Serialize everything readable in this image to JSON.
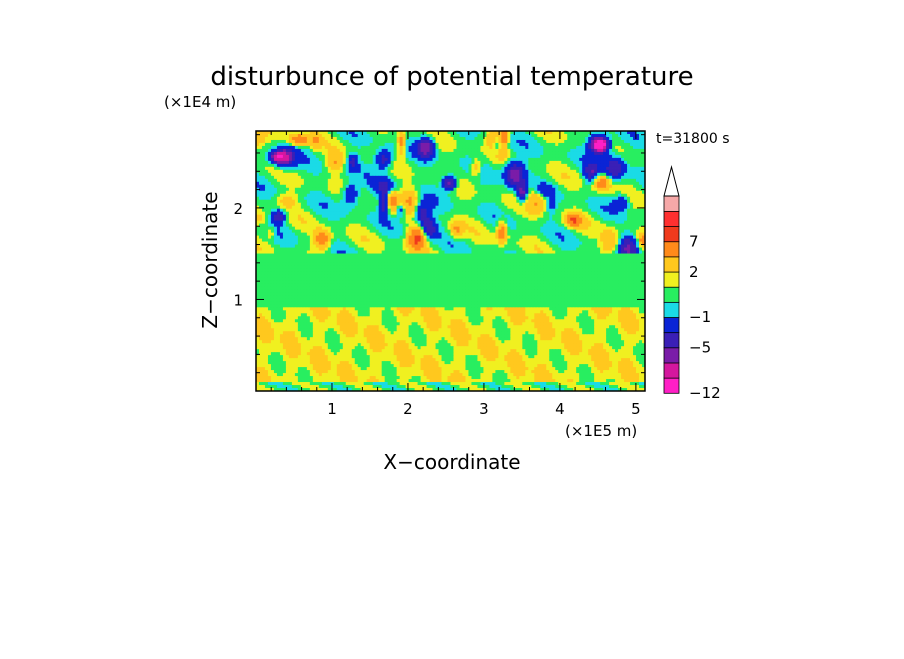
{
  "chart_data": {
    "type": "heatmap",
    "title": "disturbunce of potential temperature",
    "time_label": "t=31800 s",
    "xlabel": "X−coordinate",
    "ylabel": "Z−coordinate",
    "x_multiplier": "(×1E5 m)",
    "y_multiplier": "(×1E4 m)",
    "xlim": [
      0,
      5.12
    ],
    "ylim": [
      0,
      2.84
    ],
    "x_ticks": [
      1,
      2,
      3,
      4,
      5
    ],
    "x_tick_labels": [
      "1",
      "2",
      "3",
      "4",
      "5"
    ],
    "y_ticks": [
      1,
      2
    ],
    "y_tick_labels": [
      "1",
      "2"
    ],
    "colorbar": {
      "levels_bottom_to_top": [
        -12,
        -9,
        -7,
        -5,
        -3,
        -1,
        0,
        1,
        2,
        4,
        7,
        9,
        12
      ],
      "colors_bottom_to_top": [
        "#ff1fc6",
        "#d4179e",
        "#7a1ca8",
        "#3a1fb6",
        "#0a24d6",
        "#1adbe6",
        "#28ee60",
        "#f0f020",
        "#ffc81e",
        "#ff8a1a",
        "#f03a1c",
        "#ff3030",
        "#f6a8a8"
      ],
      "tick_labels": [
        "−12",
        "−5",
        "−1",
        "2",
        "7"
      ],
      "tick_values": [
        -12,
        -5,
        -1,
        2,
        7
      ]
    },
    "grid": false,
    "legend": "colorbar-right",
    "bands": [
      {
        "z_range": [
          0.0,
          0.1
        ],
        "dominant": "green-yellow"
      },
      {
        "z_range": [
          0.1,
          0.9
        ],
        "dominant": "yellow-orange"
      },
      {
        "z_range": [
          0.9,
          1.5
        ],
        "dominant": "green"
      },
      {
        "z_range": [
          1.5,
          2.84
        ],
        "dominant": "mixed wave pattern"
      }
    ]
  }
}
